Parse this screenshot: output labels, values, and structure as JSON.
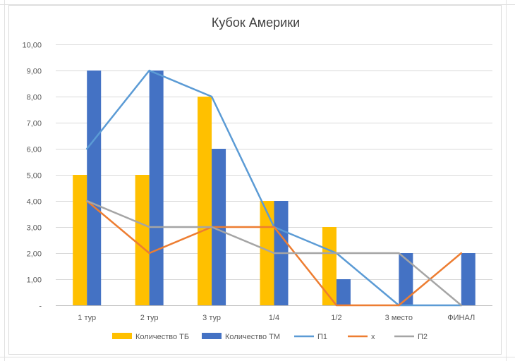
{
  "chart_data": {
    "type": "bar",
    "title": "Кубок Америки",
    "categories": [
      "1 тур",
      "2 тур",
      "3 тур",
      "1/4",
      "1/2",
      "3 место",
      "ФИНАЛ"
    ],
    "ylim": [
      0,
      10
    ],
    "yticks": [
      "-",
      "1,00",
      "2,00",
      "3,00",
      "4,00",
      "5,00",
      "6,00",
      "7,00",
      "8,00",
      "9,00",
      "10,00"
    ],
    "grid": true,
    "legend_position": "bottom",
    "bar_series": [
      {
        "name": "Количество ТБ",
        "color": "#FFC000",
        "values": [
          5,
          5,
          8,
          4,
          3,
          0,
          0
        ]
      },
      {
        "name": "Количество ТМ",
        "color": "#4472C4",
        "values": [
          9,
          9,
          6,
          4,
          1,
          2,
          2
        ]
      }
    ],
    "line_series": [
      {
        "name": "П1",
        "color": "#5B9BD5",
        "values": [
          6,
          9,
          8,
          3,
          2,
          0,
          0
        ]
      },
      {
        "name": "х",
        "color": "#ED7D31",
        "values": [
          4,
          2,
          3,
          3,
          0,
          0,
          2
        ]
      },
      {
        "name": "П2",
        "color": "#A5A5A5",
        "values": [
          4,
          3,
          3,
          2,
          2,
          2,
          0
        ]
      }
    ]
  }
}
